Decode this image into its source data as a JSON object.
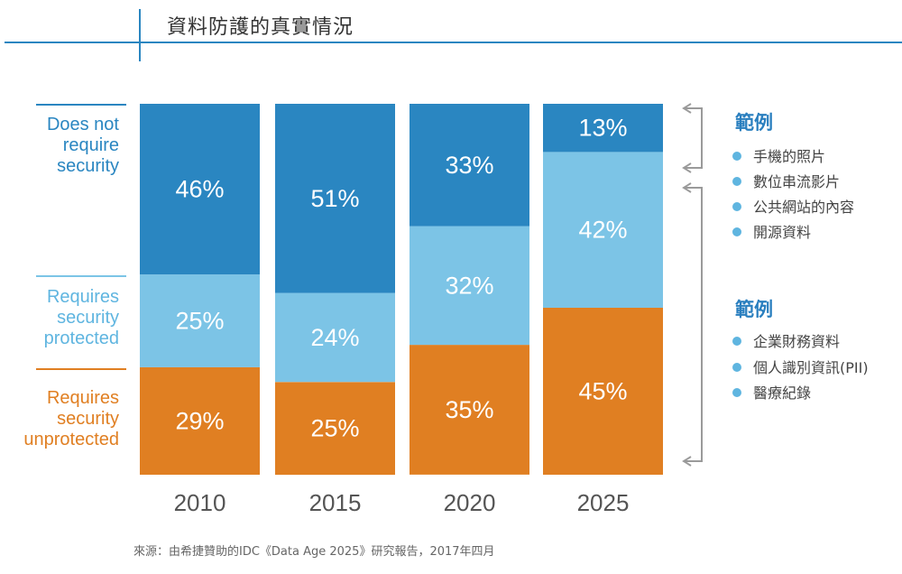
{
  "header": {
    "title": "資料防護的真實情況"
  },
  "side_labels": {
    "top": [
      "Does not",
      "require",
      "security"
    ],
    "middle": [
      "Requires",
      "security",
      "protected"
    ],
    "bottom": [
      "Requires",
      "security",
      "unprotected"
    ]
  },
  "legend": [
    {
      "heading": "範例",
      "items": [
        "手機的照片",
        "數位串流影片",
        "公共網站的內容",
        "開源資料"
      ]
    },
    {
      "heading": "範例",
      "items": [
        "企業財務資料",
        "個人識別資訊(PII)",
        "醫療紀錄"
      ]
    }
  ],
  "source": "來源：由希捷贊助的IDC《Data Age 2025》研究報告，2017年四月",
  "colors": {
    "does_not_require": "#2a86c1",
    "protected": "#7cc4e6",
    "unprotected": "#e07f22"
  },
  "chart_data": {
    "type": "bar",
    "stacked": true,
    "normalized_percent": true,
    "categories": [
      "2010",
      "2015",
      "2020",
      "2025"
    ],
    "ylim": [
      0,
      100
    ],
    "series": [
      {
        "key": "unprotected",
        "values": [
          29,
          25,
          35,
          45
        ],
        "labels": [
          "29%",
          "25%",
          "35%",
          "45%"
        ]
      },
      {
        "key": "protected",
        "values": [
          25,
          24,
          32,
          42
        ],
        "labels": [
          "25%",
          "24%",
          "32%",
          "42%"
        ]
      },
      {
        "key": "does_not_require",
        "values": [
          46,
          51,
          33,
          13
        ],
        "labels": [
          "46%",
          "51%",
          "33%",
          "13%"
        ]
      }
    ]
  }
}
